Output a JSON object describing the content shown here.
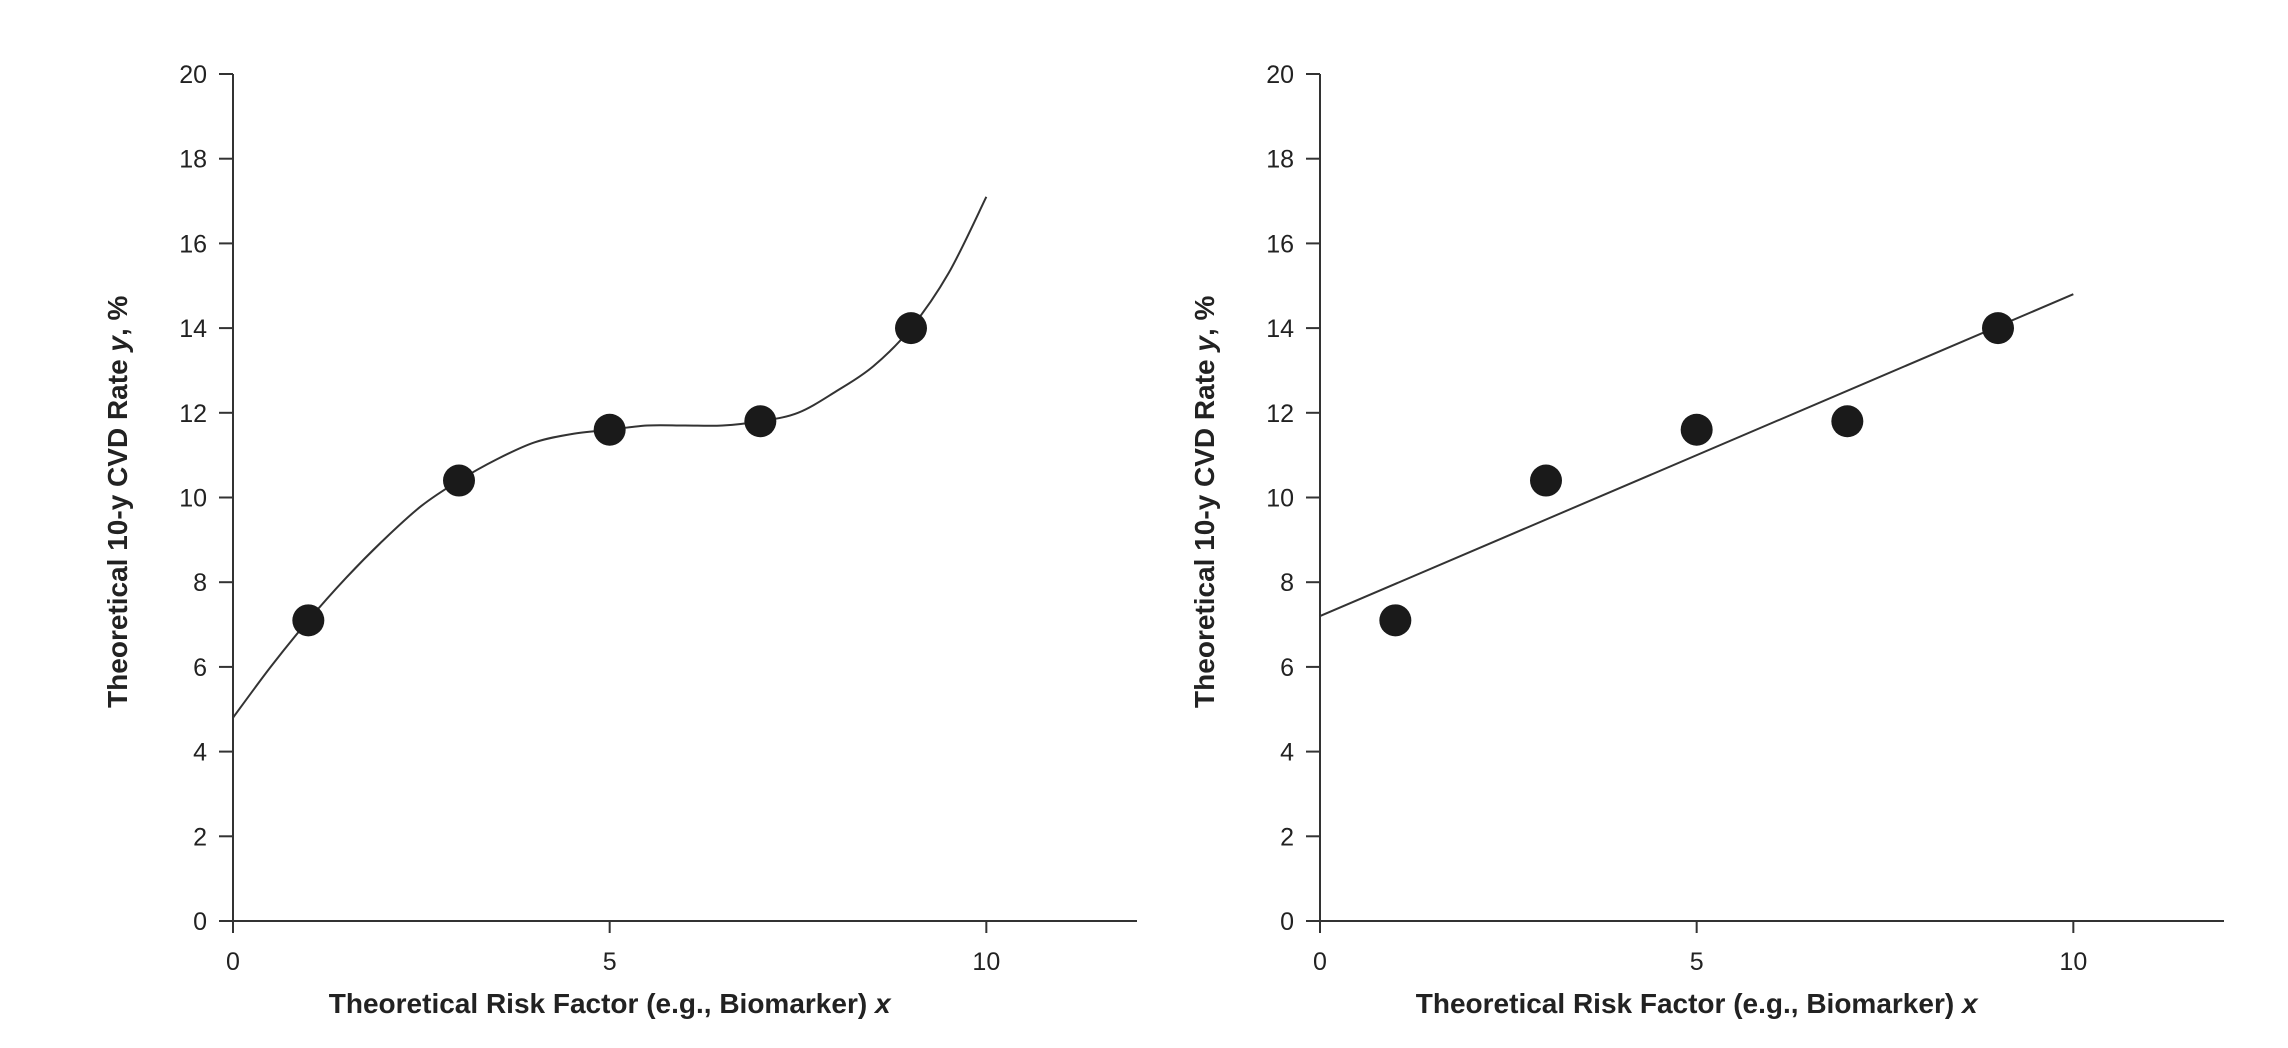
{
  "chart_data": [
    {
      "type": "scatter",
      "fit": "cubic",
      "xlabel": "Theoretical Risk Factor (e.g., Biomarker)",
      "xlabel_var": "x",
      "ylabel": "Theoretical 10-y CVD Rate",
      "ylabel_var": "y",
      "ylabel_suffix": ", %",
      "xlim": [
        0,
        12
      ],
      "ylim": [
        0,
        20
      ],
      "xticks": [
        0,
        5,
        10
      ],
      "yticks": [
        0,
        2,
        4,
        6,
        8,
        10,
        12,
        14,
        16,
        18,
        20
      ],
      "grid": false,
      "points": {
        "x": [
          1,
          3,
          5,
          7,
          9
        ],
        "y": [
          7.1,
          10.4,
          11.6,
          11.8,
          14.0
        ]
      },
      "curve": {
        "x": [
          0,
          0.5,
          1,
          1.5,
          2,
          2.5,
          3,
          3.5,
          4,
          4.5,
          5,
          5.5,
          6,
          6.5,
          7,
          7.5,
          8,
          8.5,
          9,
          9.5,
          10
        ],
        "y": [
          4.8,
          6.0,
          7.1,
          8.1,
          9.0,
          9.8,
          10.4,
          10.9,
          11.3,
          11.5,
          11.6,
          11.7,
          11.7,
          11.7,
          11.8,
          12.0,
          12.5,
          13.1,
          14.0,
          15.3,
          17.1
        ]
      },
      "colors": {
        "points": "#1a1a1a",
        "line": "#333333",
        "axis": "#333333"
      }
    },
    {
      "type": "scatter",
      "fit": "linear",
      "xlabel": "Theoretical Risk Factor (e.g., Biomarker)",
      "xlabel_var": "x",
      "ylabel": "Theoretical 10-y CVD Rate",
      "ylabel_var": "y",
      "ylabel_suffix": ", %",
      "xlim": [
        0,
        12
      ],
      "ylim": [
        0,
        20
      ],
      "xticks": [
        0,
        5,
        10
      ],
      "yticks": [
        0,
        2,
        4,
        6,
        8,
        10,
        12,
        14,
        16,
        18,
        20
      ],
      "grid": false,
      "points": {
        "x": [
          1,
          3,
          5,
          7,
          9
        ],
        "y": [
          7.1,
          10.4,
          11.6,
          11.8,
          14.0
        ]
      },
      "curve": {
        "x": [
          0,
          10
        ],
        "y": [
          7.2,
          14.8
        ]
      },
      "colors": {
        "points": "#1a1a1a",
        "line": "#333333",
        "axis": "#333333"
      }
    }
  ]
}
